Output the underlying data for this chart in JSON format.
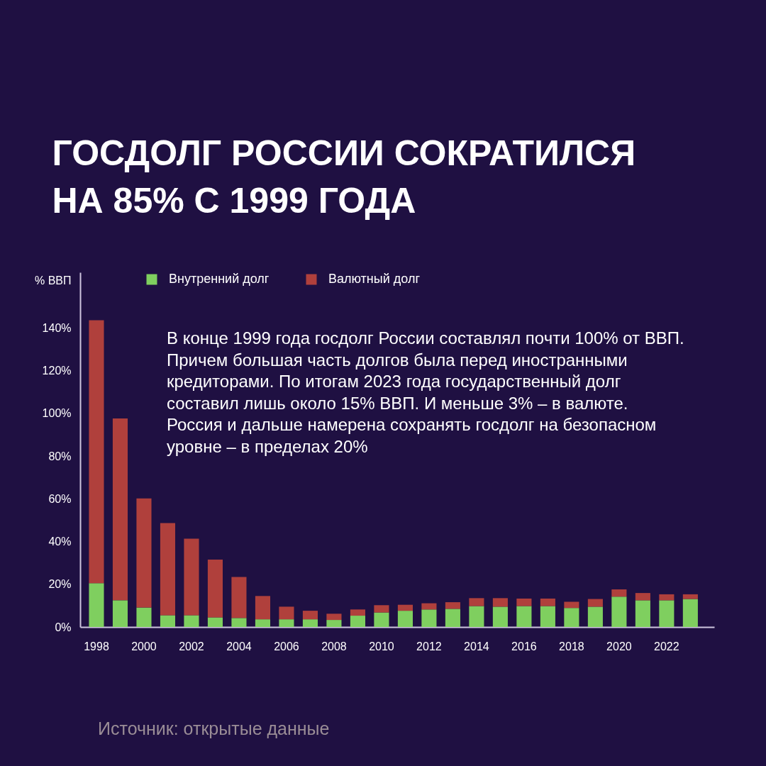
{
  "chart_data": {
    "type": "bar",
    "title": "ГОСДОЛГ РОССИИ СОКРАТИЛСЯ\nНА 85% С 1999 ГОДА",
    "ylabel": "% ВВП",
    "categories": [
      "1998",
      null,
      "2000",
      null,
      "2002",
      null,
      "2004",
      null,
      "2006",
      null,
      "2008",
      null,
      "2010",
      null,
      "2012",
      null,
      "2014",
      null,
      "2016",
      null,
      "2018",
      null,
      "2020",
      null,
      "2022",
      null
    ],
    "series": [
      {
        "name": "Внутренний долг",
        "color": "#7fcf5f",
        "values": [
          20.5,
          12.5,
          9.1,
          5.5,
          5.5,
          4.5,
          4.2,
          3.6,
          3.6,
          3.6,
          3.3,
          5.3,
          6.8,
          7.6,
          8.2,
          8.5,
          9.8,
          9.5,
          9.8,
          9.8,
          8.9,
          9.5,
          14.2,
          12.5,
          12.5,
          13.1
        ]
      },
      {
        "name": "Валютный долг",
        "color": "#b0403c",
        "values": [
          123.1,
          85.1,
          51.1,
          43.1,
          35.8,
          27.0,
          19.2,
          10.9,
          5.9,
          4.0,
          2.9,
          2.9,
          3.4,
          2.8,
          2.9,
          3.1,
          3.7,
          4.0,
          3.5,
          3.5,
          2.9,
          3.6,
          3.4,
          3.4,
          2.8,
          2.2
        ]
      }
    ],
    "stacked": true,
    "ylim": [
      0,
      166
    ],
    "yticks": [
      {
        "value": 0,
        "label": "0%"
      },
      {
        "value": 20,
        "label": "20%"
      },
      {
        "value": 40,
        "label": "40%"
      },
      {
        "value": 60,
        "label": "60%"
      },
      {
        "value": 80,
        "label": "80%"
      },
      {
        "value": 100,
        "label": "100%"
      },
      {
        "value": 120,
        "label": "120%"
      },
      {
        "value": 140,
        "label": "140%"
      }
    ],
    "legend": "top",
    "annotations": [
      "В конце 1999 года госдолг России составлял почти 100% от ВВП.\nПричем большая часть долгов была перед иностранными\nкредиторами. По итогам 2023 года государственный долг\nсоставил лишь около 15% ВВП. И меньше 3% – в валюте.\nРоссия и дальше намерена сохранять госдолг на безопасном\nуровне – в пределах 20%",
      "Источник: открытые данные"
    ]
  }
}
